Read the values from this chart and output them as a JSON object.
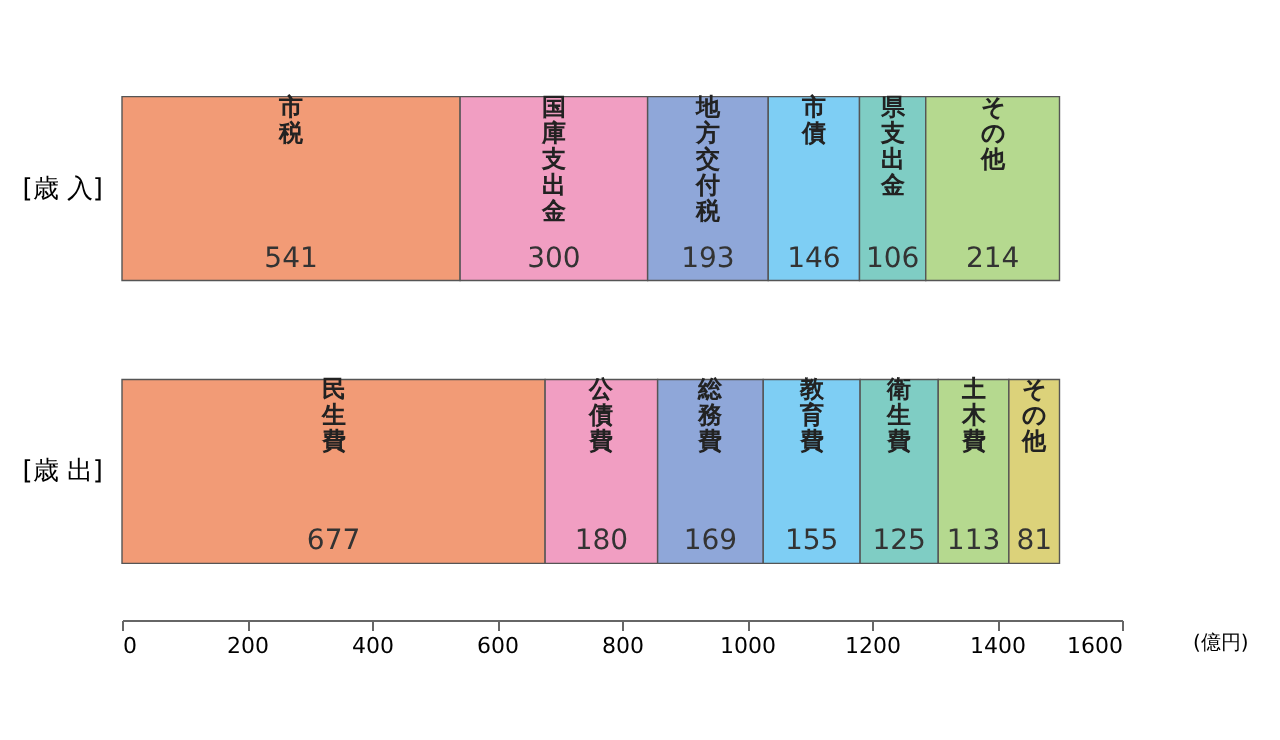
{
  "chart_data": {
    "type": "bar",
    "orientation": "horizontal",
    "stacked": true,
    "categories": [
      "[歳 入]",
      "[歳 出]"
    ],
    "xlabel": "(億円)",
    "xlim": [
      0,
      1600
    ],
    "xticks": [
      0,
      200,
      400,
      600,
      800,
      1000,
      1200,
      1400,
      1600
    ],
    "grid": false,
    "legend": false,
    "data_labels": true,
    "series": [
      {
        "name": "市税",
        "color": "#f29b76",
        "values": [
          541,
          null
        ]
      },
      {
        "name": "国庫支出金",
        "color": "#f19ec2",
        "values": [
          300,
          null
        ]
      },
      {
        "name": "地方交付税",
        "color": "#8fa7d9",
        "values": [
          193,
          null
        ]
      },
      {
        "name": "市債",
        "color": "#7ecef4",
        "values": [
          146,
          null
        ]
      },
      {
        "name": "県支出金",
        "color": "#7fcdc4",
        "values": [
          106,
          null
        ]
      },
      {
        "name": "その他",
        "color": "#b5d98f",
        "values": [
          214,
          null
        ]
      },
      {
        "name": "民生費",
        "color": "#f29b76",
        "values": [
          null,
          677
        ]
      },
      {
        "name": "公債費",
        "color": "#f19ec2",
        "values": [
          null,
          180
        ]
      },
      {
        "name": "総務費",
        "color": "#8fa7d9",
        "values": [
          null,
          169
        ]
      },
      {
        "name": "教育費",
        "color": "#7ecef4",
        "values": [
          null,
          155
        ]
      },
      {
        "name": "衛生費",
        "color": "#7fcdc4",
        "values": [
          null,
          125
        ]
      },
      {
        "name": "土木費",
        "color": "#b5d98f",
        "values": [
          null,
          113
        ]
      },
      {
        "name": "その他",
        "color": "#dcd27a",
        "values": [
          null,
          81
        ]
      }
    ]
  }
}
